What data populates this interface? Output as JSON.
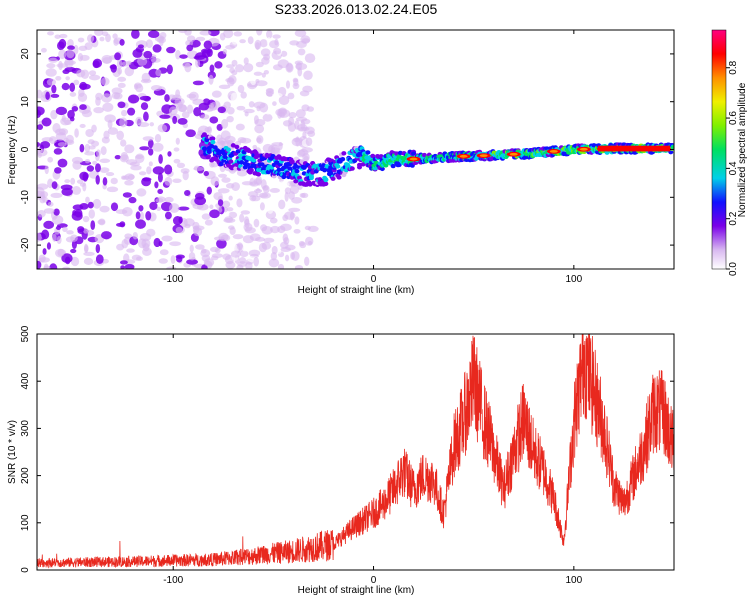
{
  "page_title": "S233.2026.013.02.24.E05",
  "chart_data": [
    {
      "type": "heatmap",
      "title": "S233.2026.013.02.24.E05",
      "xlabel": "Height of straight line (km)",
      "ylabel": "Frequency (Hz)",
      "xlim": [
        -168,
        150
      ],
      "ylim": [
        -25,
        25
      ],
      "xticks": [
        -100,
        0,
        100
      ],
      "yticks": [
        -20,
        -10,
        0,
        10,
        20
      ],
      "colorbar": {
        "label": "Normalized spectral amplitude",
        "range": [
          0,
          0.95
        ],
        "ticks": [
          "0.0",
          "0.2",
          "0.4",
          "0.6",
          "0.8"
        ],
        "colormap": [
          "#ffffff",
          "#d8b8f0",
          "#7a00e8",
          "#1010ff",
          "#00d0e8",
          "#00e060",
          "#80f000",
          "#f0f000",
          "#ff9000",
          "#ff0000",
          "#ff0080"
        ]
      },
      "ridge": {
        "description_points_x": [
          -85,
          -75,
          -65,
          -55,
          -45,
          -35,
          -25,
          -15,
          -5,
          0,
          10,
          20,
          40,
          60,
          80,
          100,
          120,
          150
        ],
        "description_points_y": [
          1,
          -1,
          -2,
          -3,
          -4,
          -5,
          -5,
          -3,
          -1,
          -3,
          -2,
          -2,
          -1.5,
          -1.2,
          -0.8,
          0,
          0.2,
          0.2
        ],
        "peak_amplitude_x": [
          20,
          45,
          55,
          70,
          90,
          105,
          115,
          125,
          135,
          145
        ],
        "noise_region_x": [
          -168,
          -45
        ]
      }
    },
    {
      "type": "line",
      "xlabel": "Height of straight line (km)",
      "ylabel": "SNR (10 * v/v)",
      "xlim": [
        -168,
        150
      ],
      "ylim": [
        0,
        500
      ],
      "xticks": [
        -100,
        0,
        100
      ],
      "yticks": [
        0,
        100,
        200,
        300,
        400,
        500
      ],
      "color": "#e8281e",
      "envelope_x": [
        -168,
        -120,
        -80,
        -60,
        -40,
        -20,
        -10,
        0,
        5,
        10,
        15,
        20,
        25,
        30,
        35,
        40,
        45,
        50,
        55,
        60,
        65,
        70,
        75,
        80,
        85,
        90,
        95,
        100,
        105,
        110,
        115,
        120,
        125,
        130,
        135,
        140,
        145,
        150
      ],
      "envelope_y": [
        15,
        18,
        22,
        30,
        40,
        55,
        90,
        120,
        140,
        170,
        210,
        170,
        200,
        190,
        120,
        260,
        320,
        400,
        320,
        250,
        170,
        250,
        320,
        250,
        210,
        150,
        60,
        310,
        450,
        380,
        300,
        180,
        140,
        200,
        260,
        340,
        330,
        260
      ]
    }
  ]
}
